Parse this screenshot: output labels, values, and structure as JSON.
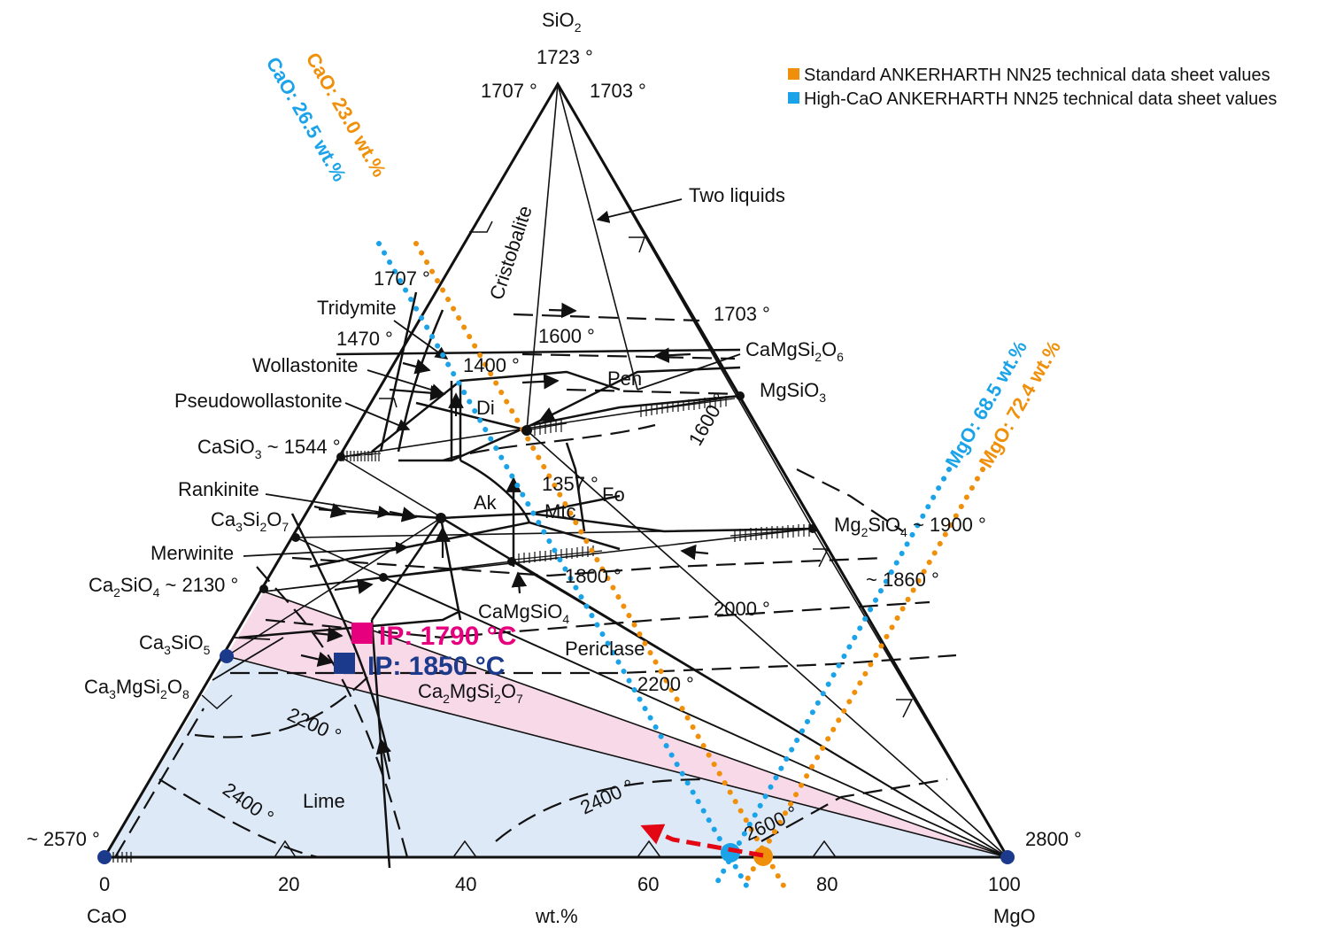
{
  "apex": {
    "top": {
      "formula": "SiO",
      "sub": "2",
      "temp": "1723 °",
      "temp_left": "1707 °",
      "temp_right": "1703 °"
    },
    "left": {
      "name": "CaO",
      "temp": "~ 2570 °"
    },
    "right": {
      "name": "MgO",
      "temp": "2800 °"
    }
  },
  "axis": {
    "ticks": [
      "0",
      "20",
      "40",
      "60",
      "80",
      "100"
    ],
    "unit": "wt.%"
  },
  "legend": [
    {
      "color": "#F0900A",
      "text": "Standard ANKERHARTH NN25 technical data sheet values"
    },
    {
      "color": "#1AA3E8",
      "text": "High-CaO ANKERHARTH NN25 technical data sheet values"
    }
  ],
  "phase_labels": {
    "two_liquids": "Two liquids",
    "cristobalite": "Cristobalite",
    "tridymite": "Tridymite",
    "wollastonite": "Wollastonite",
    "pseudowollastonite": "Pseudowollastonite",
    "rankinite": "Rankinite",
    "merwinite": "Merwinite",
    "di": "Di",
    "pen": "Pen",
    "ak": "Ak",
    "mtc": "Mtc",
    "fo": "Fo",
    "periclase": "Periclase",
    "lime": "Lime"
  },
  "compounds": {
    "casio3": {
      "main": "CaSiO",
      "sub": "3",
      "suffix": " ~ 1544 °"
    },
    "ca3si2o7": {
      "main": "Ca",
      "sub1": "3",
      "mid": "Si",
      "sub2": "2",
      "end": "O",
      "sub3": "7"
    },
    "ca2sio4": {
      "main": "Ca",
      "sub1": "2",
      "mid": "SiO",
      "sub2": "4",
      "suffix": " ~ 2130 °"
    },
    "ca3sio5": {
      "main": "Ca",
      "sub1": "3",
      "mid": "SiO",
      "sub2": "5"
    },
    "ca3mgsi2o8": {
      "main": "Ca",
      "sub1": "3",
      "mid": "MgSi",
      "sub2": "2",
      "end": "O",
      "sub3": "8"
    },
    "camgsi2o6": {
      "main": "CaMgSi",
      "sub1": "2",
      "end": "O",
      "sub2": "6"
    },
    "mgsio3": {
      "main": "MgSiO",
      "sub": "3"
    },
    "mg2sio4": {
      "main": "Mg",
      "sub1": "2",
      "mid": "SiO",
      "sub2": "4",
      "suffix": " ~ 1900 °"
    },
    "camgsio4": {
      "main": "CaMgSiO",
      "sub": "4"
    },
    "ca2mgsi2o7": {
      "main": "Ca",
      "sub1": "2",
      "mid": "MgSi",
      "sub2": "2",
      "end": "O",
      "sub3": "7"
    }
  },
  "temps": {
    "t1707": "1707 °",
    "t1703": "1703 °",
    "t1470": "1470 °",
    "t1600a": "1600 °",
    "t1400": "1400 °",
    "t1600b": "1600 °",
    "t1357": "1357 °",
    "t1860": "~ 1860 °",
    "t1800": "1800 °",
    "t2000": "2000 °",
    "t2200a": "2200 °",
    "t2200b": "2200 °",
    "t2400a": "2400 °",
    "t2400b": "2400 °",
    "t2600": "2600 °"
  },
  "ip": [
    {
      "text": "IP: 1790 °C",
      "color": "#E6007E"
    },
    {
      "text": "IP: 1850 °C",
      "color": "#1B3A8C"
    }
  ],
  "composition_lines": {
    "cao_std": {
      "text": "CaO: 23.0 wt.%",
      "color": "#F0900A"
    },
    "cao_hi": {
      "text": "CaO: 26.5 wt.%",
      "color": "#1AA3E8"
    },
    "mgo_hi": {
      "text": "MgO: 68.5 wt.%",
      "color": "#1AA3E8"
    },
    "mgo_std": {
      "text": "MgO: 72.4 wt.%",
      "color": "#F0900A"
    }
  },
  "colors": {
    "pink_band": "#F8D9E8",
    "blue_region": "#DDE9F7",
    "red_arrow": "#E30613",
    "node_blue": "#1B3A8C"
  }
}
